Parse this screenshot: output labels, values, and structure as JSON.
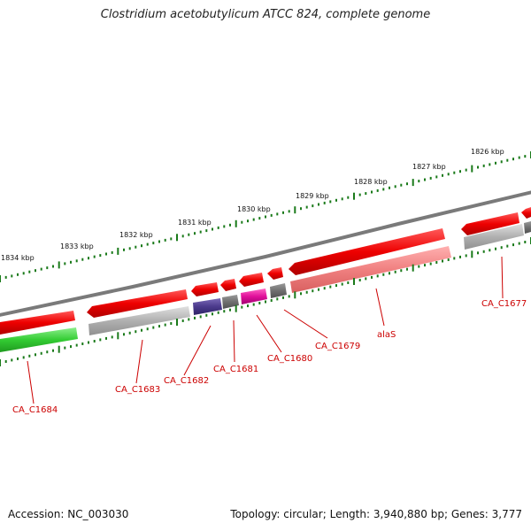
{
  "title": "Clostridium acetobutylicum ATCC 824, complete genome",
  "footer": {
    "accession_label": "Accession:",
    "accession": "NC_003030",
    "topology_label": "Topology:",
    "topology": "circular",
    "length_label": "Length:",
    "length": "3,940,880 bp",
    "genes_label": "Genes:",
    "genes": "3,777"
  },
  "scale": {
    "unit": "kbp",
    "ticks": [
      {
        "label": "1826 kbp"
      },
      {
        "label": "1827 kbp"
      },
      {
        "label": "1828 kbp"
      },
      {
        "label": "1829 kbp"
      },
      {
        "label": "1830 kbp"
      },
      {
        "label": "1831 kbp"
      },
      {
        "label": "1832 kbp"
      },
      {
        "label": "1833 kbp"
      },
      {
        "label": "1834 kbp"
      }
    ]
  },
  "colors": {
    "forward_cds": "#ee0000",
    "reverse_cds": "#f08080",
    "gray_feature": "#b0b0b0",
    "green_feature": "#33cc33",
    "purple_feature": "#4b3a8c",
    "magenta_feature": "#e0109a",
    "dark_gray_feature": "#707070",
    "backbone": "#808080",
    "tick": "#1a7a1a",
    "label": "#cc0000"
  },
  "gene_labels": [
    {
      "name": "CA_C1677"
    },
    {
      "name": "alaS"
    },
    {
      "name": "CA_C1679"
    },
    {
      "name": "CA_C1680"
    },
    {
      "name": "CA_C1681"
    },
    {
      "name": "CA_C1682"
    },
    {
      "name": "CA_C1683"
    },
    {
      "name": "CA_C1684"
    }
  ]
}
